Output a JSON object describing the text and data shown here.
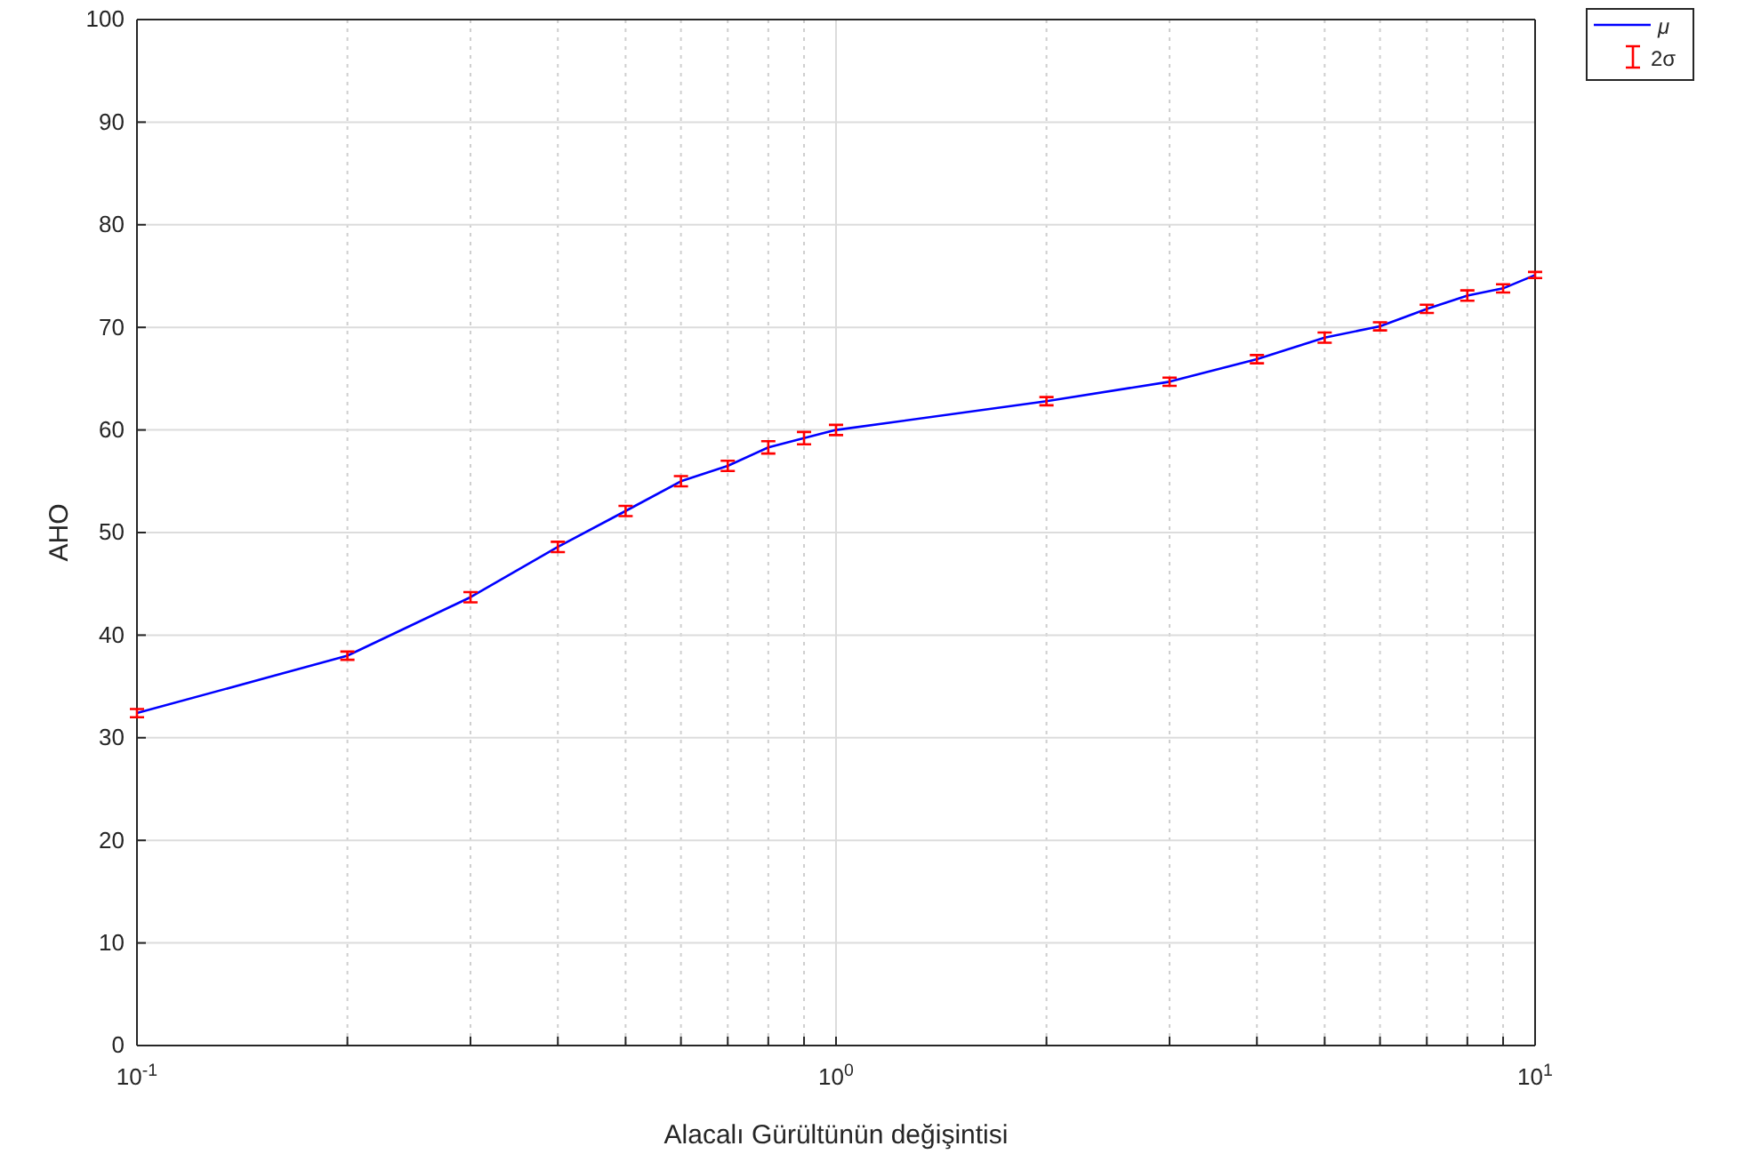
{
  "chart_data": {
    "type": "line",
    "xlabel": "Alacalı Gürültünün değişintisi",
    "ylabel": "AHO",
    "log": "x",
    "x": [
      0.1,
      0.2,
      0.3,
      0.4,
      0.5,
      0.6,
      0.7,
      0.8,
      0.9,
      1,
      2,
      3,
      4,
      5,
      6,
      7,
      8,
      9,
      10
    ],
    "series": [
      {
        "name": "μ",
        "color": "#0000ff",
        "values": [
          32.4,
          38.0,
          43.7,
          48.6,
          52.1,
          55.0,
          56.5,
          58.3,
          59.2,
          60.0,
          62.8,
          64.7,
          66.9,
          69.0,
          70.1,
          71.8,
          73.1,
          73.8,
          75.1
        ],
        "errors": [
          0.4,
          0.4,
          0.5,
          0.5,
          0.5,
          0.5,
          0.5,
          0.6,
          0.6,
          0.5,
          0.4,
          0.4,
          0.4,
          0.5,
          0.4,
          0.4,
          0.5,
          0.4,
          0.3
        ]
      }
    ],
    "annotations": [
      "2σ"
    ],
    "xlim": [
      0.1,
      10
    ],
    "ylim": [
      0,
      100
    ],
    "xticks": [
      {
        "value": 0.1,
        "label": "10$^{-1}$"
      },
      {
        "value": 0.2,
        "label": null
      },
      {
        "value": 0.3,
        "label": null
      },
      {
        "value": 0.4,
        "label": null
      },
      {
        "value": 0.5,
        "label": null
      },
      {
        "value": 0.6,
        "label": null
      },
      {
        "value": 0.7,
        "label": null
      },
      {
        "value": 0.8,
        "label": null
      },
      {
        "value": 0.9,
        "label": null
      },
      {
        "value": 1,
        "label": "10$^{0}$"
      },
      {
        "value": 2,
        "label": null
      },
      {
        "value": 3,
        "label": null
      },
      {
        "value": 4,
        "label": null
      },
      {
        "value": 5,
        "label": null
      },
      {
        "value": 6,
        "label": null
      },
      {
        "value": 7,
        "label": null
      },
      {
        "value": 8,
        "label": null
      },
      {
        "value": 9,
        "label": null
      },
      {
        "value": 10,
        "label": "10$^{1}$"
      }
    ],
    "yticks": [
      0,
      10,
      20,
      30,
      40,
      50,
      60,
      70,
      80,
      90,
      100
    ],
    "grid": true,
    "legend": "top right",
    "line_style": "solid"
  }
}
